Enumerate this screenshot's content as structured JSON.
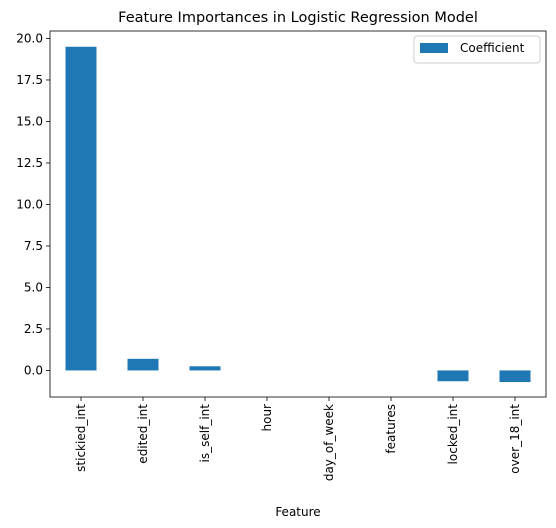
{
  "chart_data": {
    "type": "bar",
    "title": "Feature Importances in Logistic Regression Model",
    "xlabel": "Feature",
    "ylabel": "",
    "categories": [
      "stickied_int",
      "edited_int",
      "is_self_int",
      "hour",
      "day_of_week",
      "features",
      "locked_int",
      "over_18_int"
    ],
    "series": [
      {
        "name": "Coefficient",
        "color": "#1f77b4",
        "values": [
          19.5,
          0.7,
          0.25,
          0.0,
          0.0,
          0.0,
          -0.65,
          -0.7
        ]
      }
    ],
    "ylim": [
      -1.6,
      20.45
    ],
    "yticks": [
      0.0,
      2.5,
      5.0,
      7.5,
      10.0,
      12.5,
      15.0,
      17.5,
      20.0
    ],
    "ytick_labels": [
      "0.0",
      "2.5",
      "5.0",
      "7.5",
      "10.0",
      "12.5",
      "15.0",
      "17.5",
      "20.0"
    ],
    "grid": false,
    "legend_position": "top-right"
  }
}
